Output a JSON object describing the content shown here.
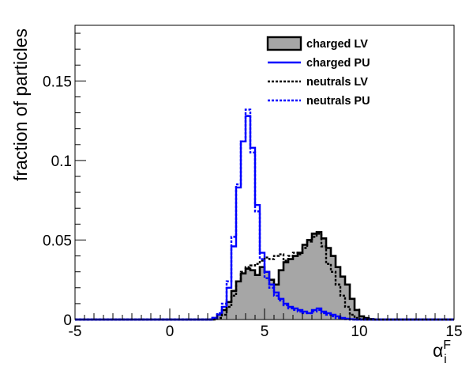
{
  "chart_data": {
    "type": "histogram",
    "xlabel": "α",
    "xlabel_sup": "F",
    "xlabel_sub": "i",
    "ylabel": "fraction of particles",
    "xlim": [
      -5,
      15
    ],
    "ylim": [
      0,
      0.185
    ],
    "bin_width": 0.25,
    "x_ticks": [
      -5,
      0,
      5,
      10,
      15
    ],
    "x_tick_labels": [
      "-5",
      "0",
      "5",
      "10",
      "15"
    ],
    "y_ticks": [
      0,
      0.05,
      0.1,
      0.15
    ],
    "y_tick_labels": [
      "0",
      "0.05",
      "0.1",
      "0.15"
    ],
    "grid": false,
    "legend_position": "top-right",
    "series": [
      {
        "name": "charged LV",
        "style": "filled",
        "color": "#000000",
        "fill": "#a6a6a6",
        "x_start": 2.25,
        "values": [
          0.001,
          0.003,
          0.006,
          0.011,
          0.018,
          0.024,
          0.029,
          0.032,
          0.031,
          0.028,
          0.033,
          0.03,
          0.025,
          0.022,
          0.031,
          0.036,
          0.038,
          0.04,
          0.042,
          0.047,
          0.05,
          0.054,
          0.055,
          0.051,
          0.045,
          0.04,
          0.033,
          0.027,
          0.022,
          0.013,
          0.006,
          0.002,
          0.001,
          0.0003
        ]
      },
      {
        "name": "charged PU",
        "style": "solid",
        "color": "#0000ff",
        "x_start": 2.25,
        "values": [
          0.001,
          0.003,
          0.008,
          0.02,
          0.046,
          0.083,
          0.112,
          0.128,
          0.108,
          0.072,
          0.042,
          0.03,
          0.022,
          0.017,
          0.013,
          0.01,
          0.008,
          0.007,
          0.006,
          0.005,
          0.004,
          0.006,
          0.007,
          0.005,
          0.004,
          0.003,
          0.002,
          0.001,
          0.0005,
          0.0002
        ]
      },
      {
        "name": "neutrals LV",
        "style": "dotted",
        "color": "#000000",
        "x_start": 2.5,
        "values": [
          0.001,
          0.003,
          0.008,
          0.015,
          0.024,
          0.03,
          0.033,
          0.034,
          0.035,
          0.037,
          0.039,
          0.038,
          0.04,
          0.041,
          0.037,
          0.04,
          0.042,
          0.041,
          0.045,
          0.049,
          0.052,
          0.054,
          0.046,
          0.035,
          0.03,
          0.022,
          0.015,
          0.008,
          0.003,
          0.001,
          0.0003
        ]
      },
      {
        "name": "neutrals PU",
        "style": "dotted",
        "color": "#0000ff",
        "x_start": 2.25,
        "values": [
          0.001,
          0.004,
          0.01,
          0.024,
          0.052,
          0.085,
          0.112,
          0.132,
          0.105,
          0.068,
          0.038,
          0.026,
          0.02,
          0.015,
          0.012,
          0.009,
          0.007,
          0.006,
          0.005,
          0.004,
          0.004,
          0.005,
          0.006,
          0.004,
          0.003,
          0.002,
          0.001,
          0.0005,
          0.0002
        ]
      }
    ]
  }
}
